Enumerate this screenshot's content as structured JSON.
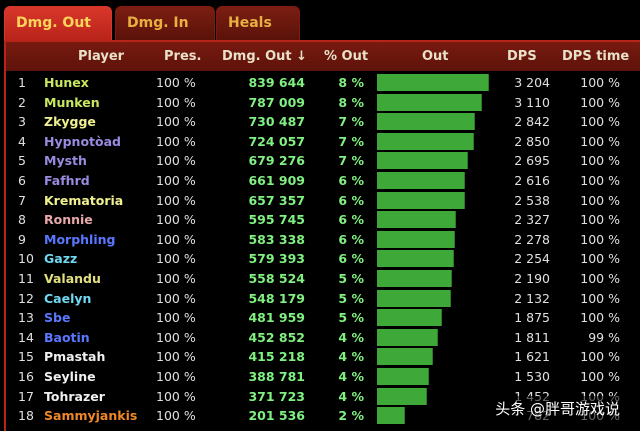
{
  "tabs": [
    {
      "label": "Dmg. Out",
      "active": true
    },
    {
      "label": "Dmg. In",
      "active": false
    },
    {
      "label": "Heals",
      "active": false
    }
  ],
  "header": {
    "player": "Player",
    "pres": "Pres.",
    "dmg_out": "Dmg. Out ↓",
    "pct_out": "% Out",
    "out": "Out",
    "dps": "DPS",
    "dps_time": "DPS time"
  },
  "colors": {
    "tab_active": "#d8372a",
    "header_bg": "#781a10",
    "bar": "#3ea838",
    "value_green": "#80f080"
  },
  "rows": [
    {
      "idx": "1",
      "name": "Hunex",
      "color": "#c8e860",
      "pres": "100 %",
      "dmg": "839 644",
      "pct": "8 %",
      "dps": "3 204",
      "dps_time": "100 %",
      "bar": 0.94
    },
    {
      "idx": "2",
      "name": "Munken",
      "color": "#c8e860",
      "pres": "100 %",
      "dmg": "787 009",
      "pct": "8 %",
      "dps": "3 110",
      "dps_time": "100 %",
      "bar": 0.88
    },
    {
      "idx": "3",
      "name": "Zkygge",
      "color": "#f0f090",
      "pres": "100 %",
      "dmg": "730 487",
      "pct": "7 %",
      "dps": "2 842",
      "dps_time": "100 %",
      "bar": 0.82
    },
    {
      "idx": "4",
      "name": "Hypnotòad",
      "color": "#9a8ae0",
      "pres": "100 %",
      "dmg": "724 057",
      "pct": "7 %",
      "dps": "2 850",
      "dps_time": "100 %",
      "bar": 0.81
    },
    {
      "idx": "5",
      "name": "Mysth",
      "color": "#9a8ae0",
      "pres": "100 %",
      "dmg": "679 276",
      "pct": "7 %",
      "dps": "2 695",
      "dps_time": "100 %",
      "bar": 0.76
    },
    {
      "idx": "6",
      "name": "Fafhrd",
      "color": "#9a8ae0",
      "pres": "100 %",
      "dmg": "661 909",
      "pct": "6 %",
      "dps": "2 616",
      "dps_time": "100 %",
      "bar": 0.74
    },
    {
      "idx": "7",
      "name": "Krematoria",
      "color": "#f0f090",
      "pres": "100 %",
      "dmg": "657 357",
      "pct": "6 %",
      "dps": "2 538",
      "dps_time": "100 %",
      "bar": 0.735
    },
    {
      "idx": "8",
      "name": "Ronnie",
      "color": "#e8a8a8",
      "pres": "100 %",
      "dmg": "595 745",
      "pct": "6 %",
      "dps": "2 327",
      "dps_time": "100 %",
      "bar": 0.665
    },
    {
      "idx": "9",
      "name": "Morphling",
      "color": "#5a78ff",
      "pres": "100 %",
      "dmg": "583 338",
      "pct": "6 %",
      "dps": "2 278",
      "dps_time": "100 %",
      "bar": 0.65
    },
    {
      "idx": "10",
      "name": "Gazz",
      "color": "#70d8f0",
      "pres": "100 %",
      "dmg": "579 393",
      "pct": "6 %",
      "dps": "2 254",
      "dps_time": "100 %",
      "bar": 0.645
    },
    {
      "idx": "11",
      "name": "Valandu",
      "color": "#e0e080",
      "pres": "100 %",
      "dmg": "558 524",
      "pct": "5 %",
      "dps": "2 190",
      "dps_time": "100 %",
      "bar": 0.625
    },
    {
      "idx": "12",
      "name": "Caelyn",
      "color": "#70d8f0",
      "pres": "100 %",
      "dmg": "548 179",
      "pct": "5 %",
      "dps": "2 132",
      "dps_time": "100 %",
      "bar": 0.615
    },
    {
      "idx": "13",
      "name": "Sbe",
      "color": "#5a78ff",
      "pres": "100 %",
      "dmg": "481 959",
      "pct": "5 %",
      "dps": "1 875",
      "dps_time": "100 %",
      "bar": 0.54
    },
    {
      "idx": "14",
      "name": "Baotin",
      "color": "#5a78ff",
      "pres": "100 %",
      "dmg": "452 852",
      "pct": "4 %",
      "dps": "1 811",
      "dps_time": "99 %",
      "bar": 0.505
    },
    {
      "idx": "15",
      "name": "Pmastah",
      "color": "#f0f0f0",
      "pres": "100 %",
      "dmg": "415 218",
      "pct": "4 %",
      "dps": "1 621",
      "dps_time": "100 %",
      "bar": 0.465
    },
    {
      "idx": "16",
      "name": "Seyline",
      "color": "#f0f0f0",
      "pres": "100 %",
      "dmg": "388 781",
      "pct": "4 %",
      "dps": "1 530",
      "dps_time": "100 %",
      "bar": 0.435
    },
    {
      "idx": "17",
      "name": "Tohrazer",
      "color": "#f0f0f0",
      "pres": "100 %",
      "dmg": "371 723",
      "pct": "4 %",
      "dps": "1 452",
      "dps_time": "100 %",
      "bar": 0.415
    },
    {
      "idx": "18",
      "name": "Sammyjankis",
      "color": "#f08828",
      "pres": "100 %",
      "dmg": "201 536",
      "pct": "2 %",
      "dps": "782",
      "dps_time": "100 %",
      "bar": 0.225
    }
  ],
  "watermark": "头条 @胖哥游戏说"
}
